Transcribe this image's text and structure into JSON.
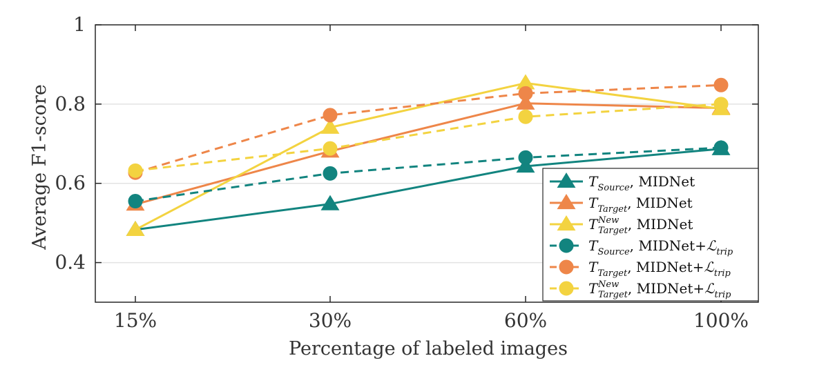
{
  "chart_data": {
    "type": "line",
    "categories": [
      "15%",
      "30%",
      "60%",
      "100%"
    ],
    "xlabel": "Percentage of labeled images",
    "ylabel": "Average F1-score",
    "ylim": [
      0.3,
      1.0
    ],
    "yticks": [
      0.4,
      0.6,
      0.8,
      1.0
    ],
    "ytick_labels": [
      "0.4",
      "0.6",
      "0.8",
      "1"
    ],
    "grid": "horizontal",
    "legend_position": "bottom-right",
    "colors": {
      "teal": "#12847f",
      "orange": "#ee8649",
      "yellow": "#f3d340"
    },
    "series": [
      {
        "name": "T_Source, MIDNet",
        "legend": {
          "T": "T",
          "sub": "Source",
          "sup": "",
          "rest": ", MIDNet",
          "loss": ""
        },
        "color": "#12847f",
        "dash": "solid",
        "marker": "triangle",
        "values": [
          0.483,
          0.548,
          0.643,
          0.687
        ]
      },
      {
        "name": "T_Target, MIDNet",
        "legend": {
          "T": "T",
          "sub": "Target",
          "sup": "",
          "rest": ", MIDNet",
          "loss": ""
        },
        "color": "#ee8649",
        "dash": "solid",
        "marker": "triangle",
        "values": [
          0.547,
          0.681,
          0.802,
          0.79
        ]
      },
      {
        "name": "T_Target^New, MIDNet",
        "legend": {
          "T": "T",
          "sub": "Target",
          "sup": "New",
          "rest": ", MIDNet",
          "loss": ""
        },
        "color": "#f3d340",
        "dash": "solid",
        "marker": "triangle",
        "values": [
          0.483,
          0.741,
          0.853,
          0.788
        ]
      },
      {
        "name": "T_Source, MIDNet+L_trip",
        "legend": {
          "T": "T",
          "sub": "Source",
          "sup": "",
          "rest": ", MIDNet+",
          "loss": "trip"
        },
        "color": "#12847f",
        "dash": "dashed",
        "marker": "circle",
        "values": [
          0.555,
          0.625,
          0.665,
          0.69
        ]
      },
      {
        "name": "T_Target, MIDNet+L_trip",
        "legend": {
          "T": "T",
          "sub": "Target",
          "sup": "",
          "rest": ", MIDNet+",
          "loss": "trip"
        },
        "color": "#ee8649",
        "dash": "dashed",
        "marker": "circle",
        "values": [
          0.627,
          0.772,
          0.827,
          0.848
        ]
      },
      {
        "name": "T_Target^New, MIDNet+L_trip",
        "legend": {
          "T": "T",
          "sub": "Target",
          "sup": "New",
          "rest": ", MIDNet+",
          "loss": "trip"
        },
        "color": "#f3d340",
        "dash": "dashed",
        "marker": "circle",
        "values": [
          0.632,
          0.688,
          0.768,
          0.8
        ]
      }
    ]
  }
}
